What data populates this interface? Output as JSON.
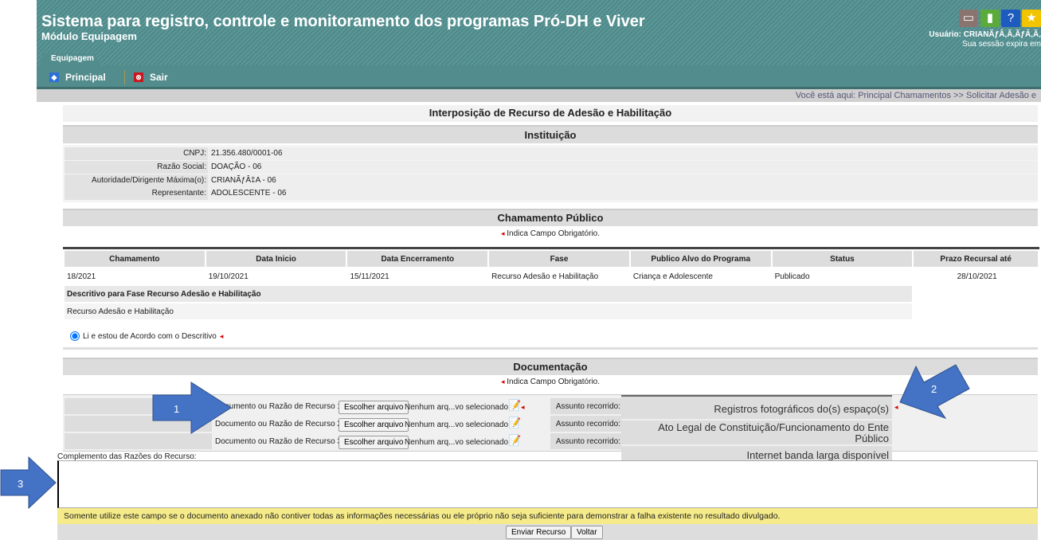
{
  "header": {
    "title": "Sistema para registro, controle e monitoramento dos programas Pró-DH e Viver",
    "module": "Módulo Equipagem",
    "user": "Usuário: CRIANÃƒÂ‚Ã‚ÃƒÂ‚Ã‚",
    "session": "Sua sessão expira em",
    "tab": "Equipagem",
    "icons": [
      "window-icon",
      "book-icon",
      "help-icon",
      "star-icon"
    ]
  },
  "nav": {
    "principal": "Principal",
    "sair": "Sair"
  },
  "breadcrumb": "Você está aqui: Principal Chamamentos >> Solicitar Adesão e",
  "page_title": "Interposição de Recurso de Adesão e Habilitação",
  "instituicao": {
    "title": "Instituição",
    "rows": [
      {
        "label": "CNPJ:",
        "value": "21.356.480/0001-06"
      },
      {
        "label": "Razão Social:",
        "value": "DOAÇÃO - 06"
      },
      {
        "label": "Autoridade/Dirigente Máxima(o):",
        "value": "CRIANÃƒÂ‡A - 06"
      },
      {
        "label": "Representante:",
        "value": "ADOLESCENTE - 06"
      }
    ]
  },
  "chamamento": {
    "title": "Chamamento Público",
    "required_note": "Indica Campo Obrigatório.",
    "columns": [
      "Chamamento",
      "Data Inicio",
      "Data Encerramento",
      "Fase",
      "Publico Alvo do Programa",
      "Status",
      "Prazo Recursal até"
    ],
    "row": [
      "18/2021",
      "19/10/2021",
      "15/11/2021",
      "Recurso Adesão e Habilitação",
      "Criança e Adolescente",
      "Publicado",
      "28/10/2021"
    ],
    "descritivo_title": "Descritivo para Fase Recurso Adesão e Habilitação",
    "descritivo_text": "Recurso Adesão e Habilitação",
    "agree_label": "Li e estou de Acordo com o Descritivo",
    "agree_checked": true
  },
  "documentacao": {
    "title": "Documentação",
    "required_note": "Indica Campo Obrigatório.",
    "docs": [
      {
        "label": "Documento ou Razão de Recurso 1:",
        "button": "Escolher arquivo",
        "file": "Nenhum arq...vo selecionado",
        "assunto": "Assunto recorrido:"
      },
      {
        "label": "Documento ou Razão de Recurso 2:",
        "button": "Escolher arquivo",
        "file": "Nenhum arq...vo selecionado",
        "assunto": "Assunto recorrido:"
      },
      {
        "label": "Documento ou Razão de Recurso 3:",
        "button": "Escolher arquivo",
        "file": "Nenhum arq...vo selecionado",
        "assunto": "Assunto recorrido:"
      }
    ],
    "assunto_options": [
      "Registros fotográficos do(s) espaço(s)",
      "Ato Legal de Constituição/Funcionamento do Ente Público",
      "Internet banda larga disponível"
    ]
  },
  "complemento": {
    "label": "Complemento das Razões do Recurso:",
    "value": "",
    "warning": "Somente utilize este campo se o documento anexado não contiver todas as informações necessárias ou ele próprio não seja suficiente para demonstrar a falha existente no resultado divulgado."
  },
  "buttons": {
    "enviar": "Enviar Recurso",
    "voltar": "Voltar"
  },
  "annotations": [
    "1",
    "2",
    "3"
  ]
}
